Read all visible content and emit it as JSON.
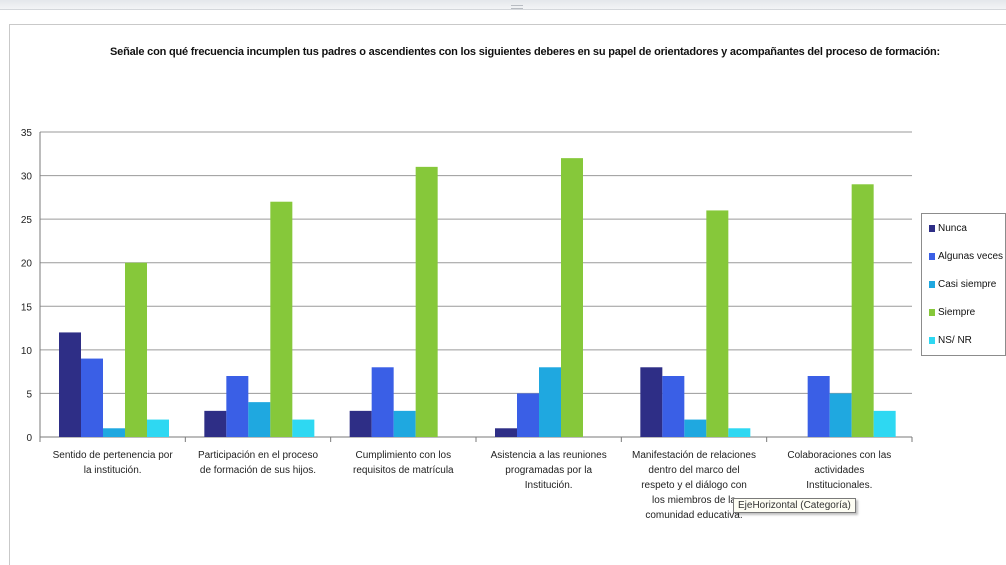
{
  "chart_data": {
    "type": "bar",
    "title": "Señale con qué frecuencia incumplen  tus padres o ascendientes con los siguientes deberes  en su papel de orientadores y acompañantes del proceso de formación:",
    "categories": [
      "Sentido de pertenencia por la institución.",
      "Participación en el proceso de formación de sus hijos.",
      "Cumplimiento con los requisitos de matrícula",
      "Asistencia a las reuniones programadas por la Institución.",
      "Manifestación de relaciones dentro del marco del respeto y el diálogo con los miembros de la comunidad educativa.",
      "Colaboraciones con las actividades Institucionales."
    ],
    "series": [
      {
        "name": "Nunca",
        "color": "#2e2e86",
        "values": [
          12,
          3,
          3,
          1,
          8,
          0
        ]
      },
      {
        "name": "Algunas veces",
        "color": "#3a5fe6",
        "values": [
          9,
          7,
          8,
          5,
          7,
          7
        ]
      },
      {
        "name": "Casi siempre",
        "color": "#1fa8e0",
        "values": [
          1,
          4,
          3,
          8,
          2,
          5
        ]
      },
      {
        "name": "Siempre",
        "color": "#86c83a",
        "values": [
          20,
          27,
          31,
          32,
          26,
          29
        ]
      },
      {
        "name": "NS/ NR",
        "color": "#2ed8f2",
        "values": [
          2,
          2,
          0,
          0,
          1,
          3
        ]
      }
    ],
    "ylim": [
      0,
      35
    ],
    "yticks": [
      0,
      5,
      10,
      15,
      20,
      25,
      30,
      35
    ],
    "grid": true,
    "legend_position": "right"
  },
  "tooltip": {
    "text": "EjeHorizontal (Categoría)"
  }
}
